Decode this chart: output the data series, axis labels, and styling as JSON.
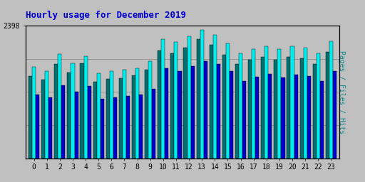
{
  "title": "Hourly usage for December 2019",
  "ylabel_right": "Pages / Files / Hits",
  "hours": [
    0,
    1,
    2,
    3,
    4,
    5,
    6,
    7,
    8,
    9,
    10,
    11,
    12,
    13,
    14,
    15,
    16,
    17,
    18,
    19,
    20,
    21,
    22,
    23
  ],
  "pages": [
    1480,
    1420,
    1700,
    1550,
    1720,
    1380,
    1430,
    1450,
    1500,
    1600,
    1950,
    1900,
    2000,
    2150,
    2050,
    1870,
    1700,
    1780,
    1830,
    1780,
    1830,
    1810,
    1700,
    1920
  ],
  "files": [
    1650,
    1580,
    1880,
    1720,
    1850,
    1530,
    1570,
    1600,
    1630,
    1750,
    2150,
    2100,
    2200,
    2320,
    2230,
    2080,
    1900,
    1970,
    2020,
    1970,
    2020,
    2000,
    1900,
    2120
  ],
  "hits": [
    1150,
    1100,
    1320,
    1200,
    1300,
    1070,
    1100,
    1120,
    1150,
    1250,
    1620,
    1570,
    1660,
    1760,
    1700,
    1580,
    1400,
    1470,
    1520,
    1460,
    1510,
    1490,
    1400,
    1580
  ],
  "pages_color": "#007070",
  "files_color": "#00EEEE",
  "hits_color": "#0000CC",
  "bg_color": "#C0C0C0",
  "plot_bg_color": "#C0C0C0",
  "title_color": "#0000CC",
  "ylabel_color": "#008888",
  "ymax": 2398,
  "bar_width": 0.28,
  "border_color": "#000000",
  "tick_color": "#000000"
}
